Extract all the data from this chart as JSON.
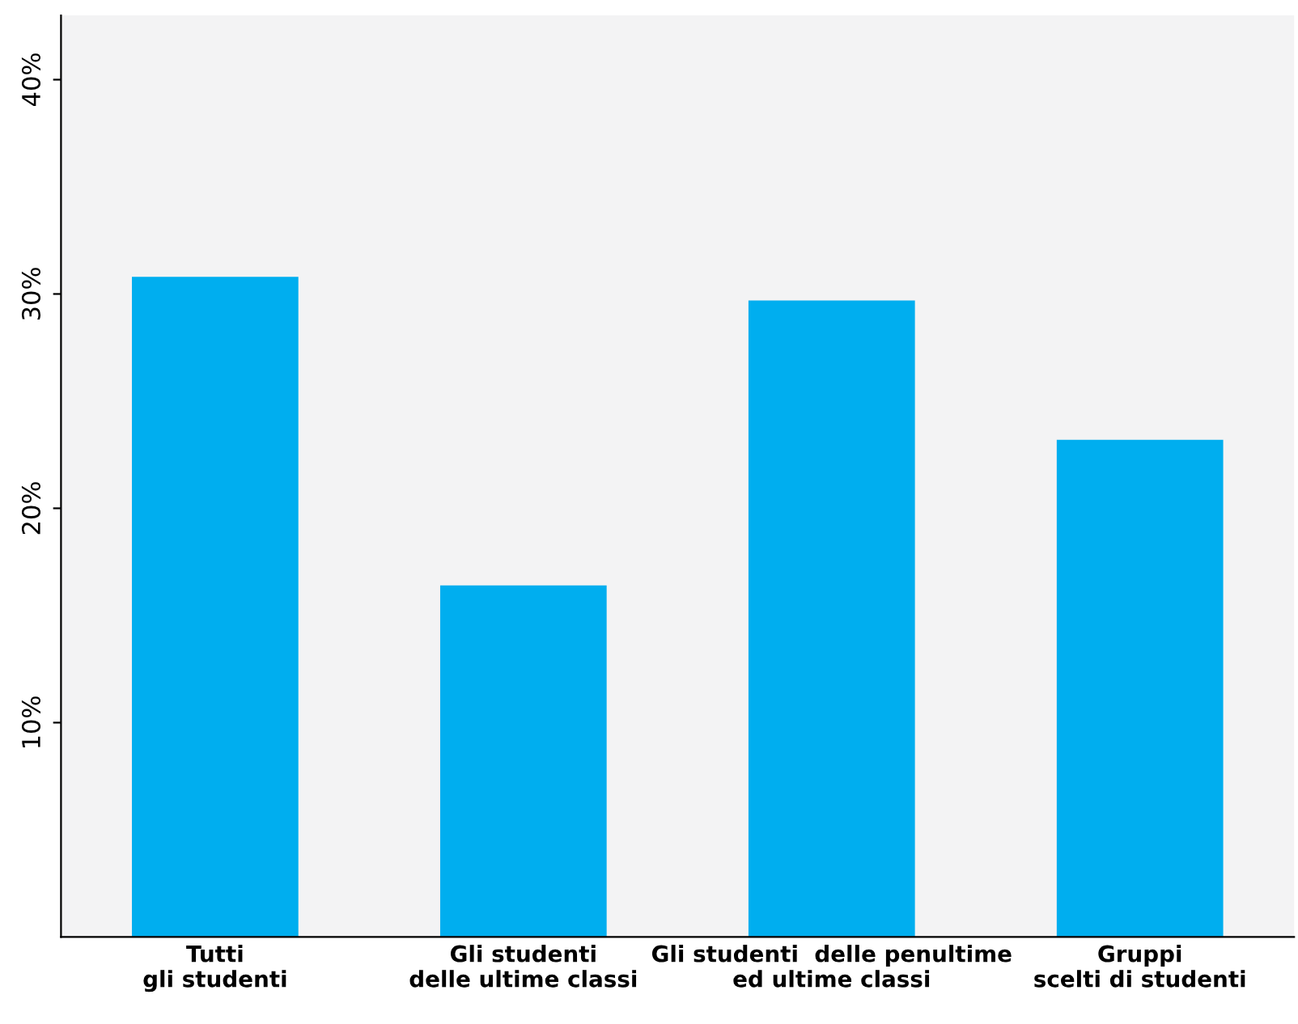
{
  "chart_data": {
    "type": "bar",
    "categories": [
      "Tutti\ngli studenti",
      "Gli studenti\ndelle ultime classi",
      "Gli studenti  delle penultime\ned ultime classi",
      "Gruppi\nscelti di studenti"
    ],
    "values": [
      30.8,
      16.4,
      29.7,
      23.2
    ],
    "color": "#00aeef",
    "ylim": [
      0,
      43
    ],
    "yticks": [
      {
        "value": 10,
        "label": "10%"
      },
      {
        "value": 20,
        "label": "20%"
      },
      {
        "value": 30,
        "label": "30%"
      },
      {
        "value": 40,
        "label": "40%"
      }
    ],
    "grid": false,
    "legend": false
  }
}
